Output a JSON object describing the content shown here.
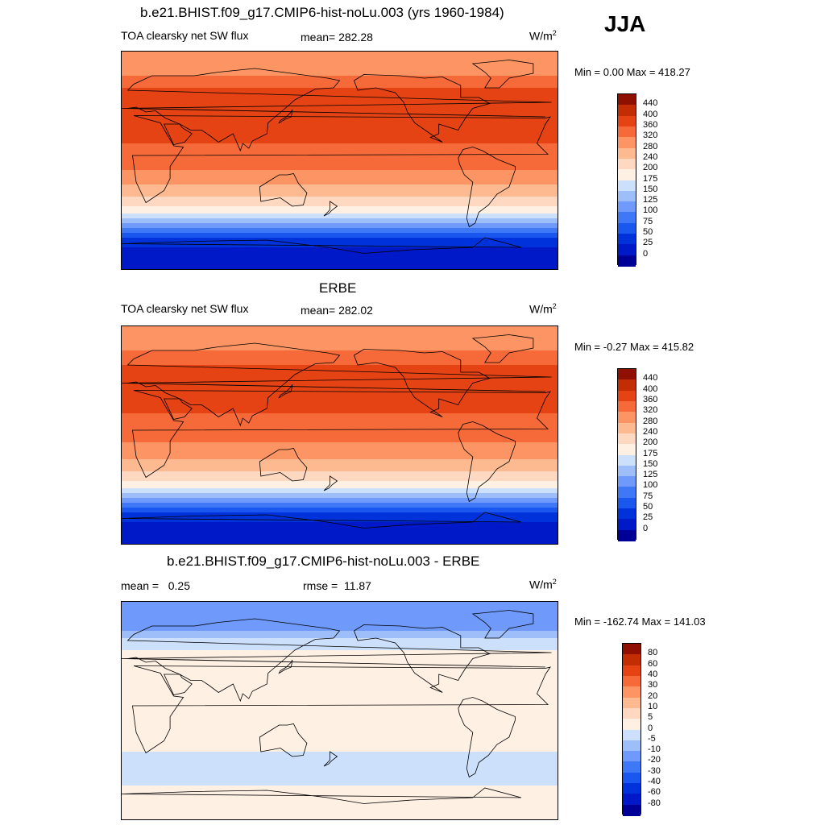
{
  "season": "JJA",
  "panels": [
    {
      "title": "b.e21.BHIST.f09_g17.CMIP6-hist-noLu.003 (yrs 1960-1984)",
      "left_label": "TOA clearsky net SW flux",
      "center_label": "mean= 282.28",
      "units": "W/m",
      "units_sup": "2",
      "minmax": "Min =   0.00 Max = 418.27"
    },
    {
      "title": "ERBE",
      "left_label": "TOA clearsky net SW flux",
      "center_label": "mean= 282.02",
      "units": "W/m",
      "units_sup": "2",
      "minmax": "Min =  -0.27 Max = 415.82"
    },
    {
      "title": "b.e21.BHIST.f09_g17.CMIP6-hist-noLu.003 - ERBE",
      "left_label": "mean =   0.25",
      "center_label": "rmse =  11.87",
      "units": "W/m",
      "units_sup": "2",
      "minmax": "Min = -162.74 Max = 141.03"
    }
  ],
  "chart_data": [
    {
      "type": "heatmap",
      "title": "b.e21.BHIST.f09_g17.CMIP6-hist-noLu.003 (yrs 1960-1984)",
      "variable": "TOA clearsky net SW flux",
      "units": "W/m2",
      "mean": 282.28,
      "min": 0.0,
      "max": 418.27,
      "levels": [
        0,
        25,
        50,
        75,
        100,
        125,
        150,
        175,
        200,
        240,
        280,
        320,
        360,
        400,
        440
      ],
      "colors": [
        "#000096",
        "#0019c8",
        "#0032dc",
        "#1a57ee",
        "#3f78f6",
        "#6f99fa",
        "#9ebef9",
        "#cde0fb",
        "#fff0e4",
        "#fed8c0",
        "#fdb990",
        "#fc9563",
        "#f66a3a",
        "#e64315",
        "#c22d04",
        "#8f0f00"
      ],
      "zonal_profile_lat": [
        75,
        60,
        45,
        30,
        15,
        0,
        -15,
        -30,
        -45,
        -55,
        -65,
        -75,
        -85
      ],
      "zonal_profile_value": [
        300,
        360,
        395,
        390,
        360,
        340,
        300,
        240,
        170,
        100,
        45,
        15,
        5
      ]
    },
    {
      "type": "heatmap",
      "title": "ERBE",
      "variable": "TOA clearsky net SW flux",
      "units": "W/m2",
      "mean": 282.02,
      "min": -0.27,
      "max": 415.82,
      "levels": [
        0,
        25,
        50,
        75,
        100,
        125,
        150,
        175,
        200,
        240,
        280,
        320,
        360,
        400,
        440
      ],
      "colors": [
        "#000096",
        "#0019c8",
        "#0032dc",
        "#1a57ee",
        "#3f78f6",
        "#6f99fa",
        "#9ebef9",
        "#cde0fb",
        "#fff0e4",
        "#fed8c0",
        "#fdb990",
        "#fc9563",
        "#f66a3a",
        "#e64315",
        "#c22d04",
        "#8f0f00"
      ],
      "zonal_profile_lat": [
        75,
        60,
        45,
        30,
        15,
        0,
        -15,
        -30,
        -45,
        -55,
        -65,
        -75,
        -85
      ],
      "zonal_profile_value": [
        300,
        355,
        390,
        385,
        355,
        335,
        300,
        240,
        170,
        100,
        45,
        15,
        5
      ]
    },
    {
      "type": "heatmap",
      "title": "b.e21.BHIST.f09_g17.CMIP6-hist-noLu.003 - ERBE",
      "units": "W/m2",
      "mean": 0.25,
      "rmse": 11.87,
      "min": -162.74,
      "max": 141.03,
      "levels": [
        -80,
        -60,
        -40,
        -30,
        -20,
        -10,
        -5,
        0,
        5,
        10,
        20,
        30,
        40,
        60,
        80
      ],
      "colors": [
        "#000096",
        "#0019c8",
        "#0032dc",
        "#1a57ee",
        "#3f78f6",
        "#6f99fa",
        "#9ebef9",
        "#cde0fb",
        "#fff0e4",
        "#fed8c0",
        "#fdb990",
        "#fc9563",
        "#f66a3a",
        "#e64315",
        "#c22d04",
        "#8f0f00"
      ],
      "zonal_profile_lat": [
        75,
        60,
        45,
        30,
        15,
        0,
        -15,
        -30,
        -45,
        -55,
        -65,
        -75,
        -85
      ],
      "zonal_profile_value": [
        -20,
        -5,
        3,
        3,
        2,
        2,
        2,
        1,
        -3,
        -4,
        2,
        3,
        1
      ]
    }
  ]
}
